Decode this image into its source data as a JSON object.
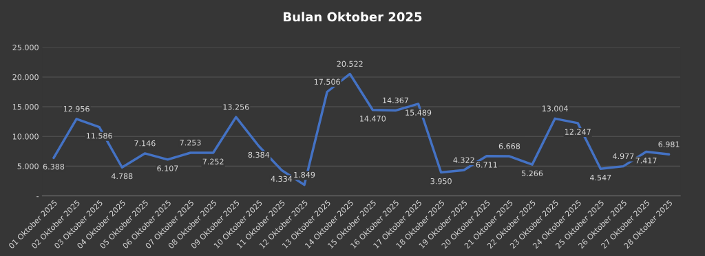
{
  "chart_data": {
    "type": "line",
    "title": "Bulan Oktober 2025",
    "categories": [
      "01 Oktober 2025",
      "02 Oktober 2025",
      "03 Oktober 2025",
      "04 Oktober 2025",
      "05 Oktober 2025",
      "06 Oktober 2025",
      "07 Oktober 2025",
      "08 Oktober 2025",
      "09 Oktober 2025",
      "10 Oktober 2025",
      "11 Oktober 2025",
      "12 Oktober 2025",
      "13 Oktober 2025",
      "14 Oktober 2025",
      "15 Oktober 2025",
      "16 Oktober 2025",
      "17 Oktober 2025",
      "18 Oktober 2025",
      "19 Oktober 2025",
      "20 Oktober 2025",
      "21 Oktober 2025",
      "22 Oktober 2025",
      "23 Oktober 2025",
      "24 Oktober 2025",
      "25 Oktober 2025",
      "26 Oktober 2025",
      "27 Oktober 2025",
      "28 Oktober 2025"
    ],
    "values": [
      6388,
      12956,
      11586,
      4788,
      7146,
      6107,
      7253,
      7252,
      13256,
      8384,
      4334,
      1849,
      17506,
      20522,
      14470,
      14367,
      15489,
      3950,
      4322,
      6711,
      6668,
      5266,
      13004,
      12247,
      4547,
      4977,
      7417,
      6981
    ],
    "value_labels": [
      "6.388",
      "12.956",
      "11.586",
      "4.788",
      "7.146",
      "6.107",
      "7.253",
      "7.252",
      "13.256",
      "8.384",
      "4.334",
      "1.849",
      "17.506",
      "20.522",
      "14.470",
      "14.367",
      "15.489",
      "3.950",
      "4.322",
      "6.711",
      "6.668",
      "5.266",
      "13.004",
      "12.247",
      "4.547",
      "4.977",
      "7.417",
      "6.981"
    ],
    "color": "#4472c4",
    "ylim": [
      0,
      25000
    ],
    "yticks": [
      {
        "value": 0,
        "label": "-"
      },
      {
        "value": 5000,
        "label": "5.000"
      },
      {
        "value": 10000,
        "label": "10.000"
      },
      {
        "value": 15000,
        "label": "15.000"
      },
      {
        "value": 20000,
        "label": "20.000"
      },
      {
        "value": 25000,
        "label": "25.000"
      }
    ],
    "grid": "y",
    "marker": "none",
    "line_style": "solid"
  }
}
